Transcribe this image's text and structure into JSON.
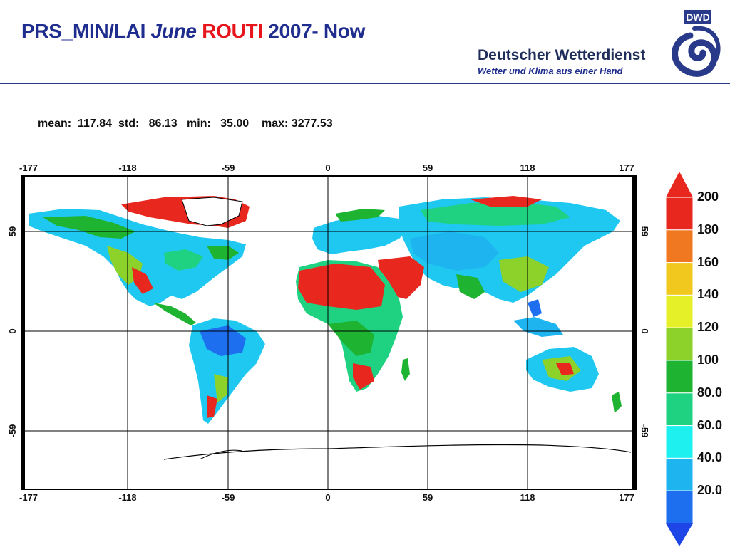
{
  "header": {
    "title_prefix": "PRS_MIN/LAI",
    "title_month": "June",
    "title_model": "ROUTI",
    "title_suffix": "2007- Now",
    "logo_abbrev": "DWD",
    "logo_name": "Deutscher Wetterdienst",
    "logo_tagline": "Wetter und Klima aus einer Hand",
    "accent_color": "#1f2d8f",
    "highlight_color": "#e8141b"
  },
  "stats": {
    "mean_label": "mean:",
    "mean": "117.84",
    "std_label": "std:",
    "std": "86.13",
    "min_label": "min:",
    "min": "35.00",
    "max_label": "max:",
    "max": "3277.53"
  },
  "map": {
    "lon_ticks": [
      "-177",
      "-118",
      "-59",
      "0",
      "59",
      "118",
      "177"
    ],
    "lat_ticks": [
      "59",
      "0",
      "-59"
    ]
  },
  "colorbar": {
    "labels": [
      "200",
      "180",
      "160",
      "140",
      "120",
      "100",
      "80.0",
      "60.0",
      "40.0",
      "20.0"
    ],
    "colors": [
      "#e8281e",
      "#f07820",
      "#f0c81e",
      "#e6f028",
      "#8cd22a",
      "#1eb432",
      "#1ed282",
      "#1ef0f0",
      "#1eb4f0",
      "#1e6ef0"
    ],
    "top_arrow_color": "#e8281e",
    "bottom_arrow_color": "#1e46e6"
  }
}
